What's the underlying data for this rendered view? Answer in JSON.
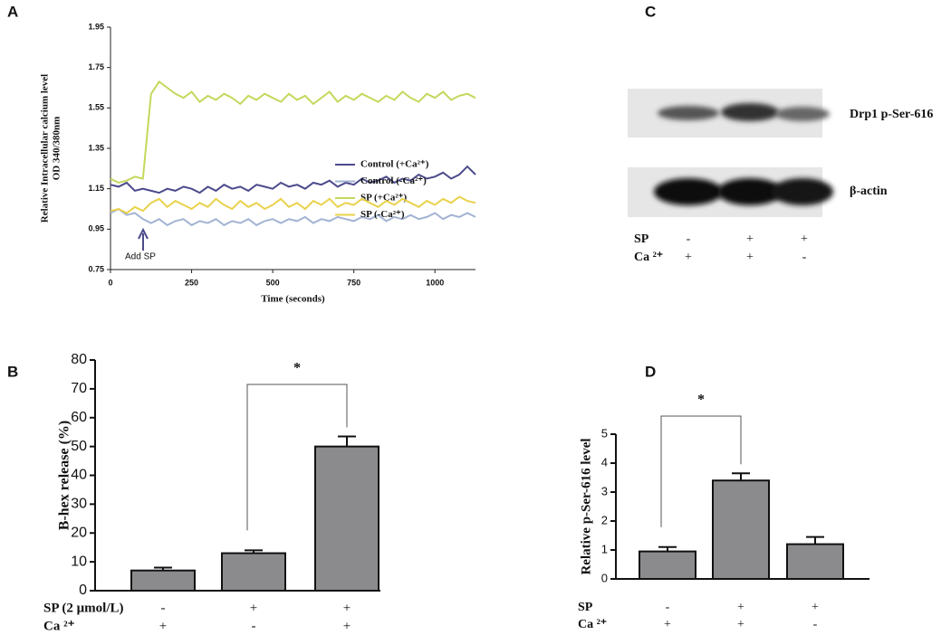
{
  "chart_data": [
    {
      "type": "line",
      "panel": "A",
      "ylabel": [
        "Relative Intracellular calcium level",
        "OD 340/380nm"
      ],
      "xlabel": "Time (seconds)",
      "annotation": "Add SP",
      "x": [
        0,
        25,
        50,
        75,
        100,
        125,
        150,
        175,
        200,
        225,
        250,
        275,
        300,
        325,
        350,
        375,
        400,
        425,
        450,
        475,
        500,
        525,
        550,
        575,
        600,
        625,
        650,
        675,
        700,
        725,
        750,
        775,
        800,
        825,
        850,
        875,
        900,
        925,
        950,
        975,
        1000,
        1025,
        1050,
        1075,
        1100,
        1125
      ],
      "xlim": [
        0,
        1125
      ],
      "xticks": [
        0,
        250,
        500,
        750,
        1000
      ],
      "ylim": [
        0.75,
        1.95
      ],
      "yticks": [
        0.75,
        0.95,
        1.15,
        1.35,
        1.55,
        1.75,
        1.95
      ],
      "series": [
        {
          "name": "Control (+Ca²⁺)",
          "color": "#4b4a8b",
          "values": [
            1.17,
            1.16,
            1.18,
            1.14,
            1.15,
            1.14,
            1.13,
            1.15,
            1.14,
            1.16,
            1.15,
            1.13,
            1.16,
            1.14,
            1.17,
            1.15,
            1.16,
            1.14,
            1.17,
            1.16,
            1.15,
            1.18,
            1.16,
            1.17,
            1.15,
            1.18,
            1.17,
            1.19,
            1.16,
            1.18,
            1.17,
            1.2,
            1.18,
            1.19,
            1.21,
            1.18,
            1.2,
            1.19,
            1.22,
            1.2,
            1.21,
            1.23,
            1.2,
            1.22,
            1.26,
            1.22
          ]
        },
        {
          "name": "Control (-Ca²⁺)",
          "color": "#a3b3d3",
          "values": [
            1.03,
            1.05,
            1.02,
            1.03,
            1.0,
            0.98,
            1.0,
            0.97,
            0.99,
            1.0,
            0.97,
            0.99,
            0.98,
            1.0,
            0.97,
            0.99,
            0.98,
            1.0,
            0.97,
            0.99,
            1.0,
            0.98,
            1.0,
            0.99,
            1.01,
            0.98,
            1.0,
            0.99,
            1.01,
            1.0,
            0.99,
            1.01,
            1.0,
            1.02,
            0.99,
            1.01,
            1.0,
            1.02,
            1.0,
            1.01,
            1.03,
            1.0,
            1.02,
            1.01,
            1.03,
            1.01
          ]
        },
        {
          "name": "SP (+Ca²⁺)",
          "color": "#c6d75c",
          "values": [
            1.2,
            1.18,
            1.19,
            1.21,
            1.2,
            1.62,
            1.68,
            1.65,
            1.62,
            1.6,
            1.63,
            1.58,
            1.61,
            1.59,
            1.62,
            1.6,
            1.57,
            1.61,
            1.59,
            1.62,
            1.6,
            1.58,
            1.62,
            1.59,
            1.61,
            1.57,
            1.6,
            1.63,
            1.58,
            1.61,
            1.59,
            1.62,
            1.6,
            1.58,
            1.61,
            1.59,
            1.63,
            1.6,
            1.58,
            1.62,
            1.6,
            1.63,
            1.59,
            1.61,
            1.62,
            1.6
          ]
        },
        {
          "name": "SP (-Ca²⁺)",
          "color": "#e9d24b",
          "values": [
            1.04,
            1.05,
            1.03,
            1.06,
            1.04,
            1.08,
            1.1,
            1.06,
            1.09,
            1.07,
            1.05,
            1.08,
            1.06,
            1.1,
            1.07,
            1.05,
            1.09,
            1.06,
            1.08,
            1.05,
            1.07,
            1.1,
            1.06,
            1.08,
            1.05,
            1.09,
            1.07,
            1.1,
            1.06,
            1.08,
            1.07,
            1.1,
            1.08,
            1.06,
            1.09,
            1.07,
            1.1,
            1.08,
            1.06,
            1.09,
            1.07,
            1.1,
            1.08,
            1.11,
            1.09,
            1.08
          ]
        }
      ]
    },
    {
      "type": "bar",
      "panel": "B",
      "ylabel": "B-hex release (%)",
      "color": "#8b8b8d",
      "values": [
        7,
        13,
        50
      ],
      "errors": [
        1,
        1,
        3.5
      ],
      "ylim": [
        0,
        80
      ],
      "yticks": [
        0,
        10,
        20,
        30,
        40,
        50,
        60,
        70,
        80
      ],
      "significance": "*",
      "conditions": [
        {
          "label": "SP (2 μmol/L)",
          "marks": [
            "-",
            "+",
            "+"
          ]
        },
        {
          "label": "Ca ²⁺",
          "marks": [
            "+",
            "-",
            "+"
          ]
        }
      ]
    },
    {
      "type": "bar",
      "panel": "D",
      "ylabel": "Relative p-Ser-616 level",
      "color": "#8b8b8d",
      "values": [
        0.95,
        3.4,
        1.2
      ],
      "errors": [
        0.15,
        0.25,
        0.25
      ],
      "ylim": [
        0,
        5
      ],
      "yticks": [
        0,
        1,
        2,
        3,
        4,
        5
      ],
      "significance": "*",
      "conditions": [
        {
          "label": "SP",
          "marks": [
            "-",
            "+",
            "+"
          ]
        },
        {
          "label": "Ca ²⁺",
          "marks": [
            "+",
            "+",
            "-"
          ]
        }
      ]
    }
  ],
  "blot": {
    "panel": "C",
    "bands": [
      "Drp1 p-Ser-616",
      "β-actin"
    ],
    "conditions": [
      {
        "label": "SP",
        "marks": [
          "-",
          "+",
          "+"
        ]
      },
      {
        "label": "Ca ²⁺",
        "marks": [
          "+",
          "+",
          "-"
        ]
      }
    ]
  }
}
